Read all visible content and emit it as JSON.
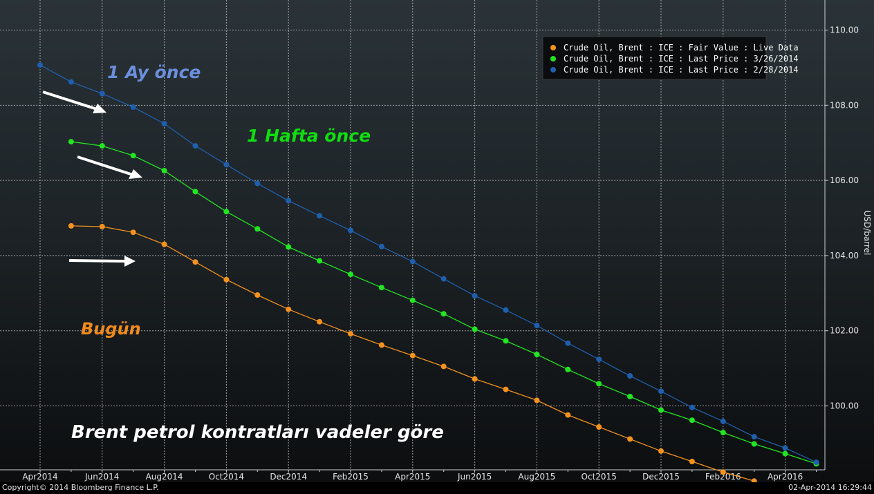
{
  "footer": {
    "copyright": "Copyright© 2014 Bloomberg Finance L.P.",
    "timestamp": "02-Apr-2014 16:29:44"
  },
  "annotations": {
    "month_ago": "1 Ay önce",
    "week_ago": "1 Hafta önce",
    "today": "Bugün",
    "caption": "Brent petrol kontratları vadeler göre"
  },
  "colors": {
    "today": "#f5921e",
    "week_ago": "#22e622",
    "month_ago": "#1f5fae",
    "month_ago_text": "#6b8fdc",
    "week_ago_text": "#10dd10",
    "today_text": "#f08a1c",
    "grid": "#d0d0d0",
    "axis": "#cfcfcf"
  },
  "chart_data": {
    "type": "line",
    "ylabel": "USD/barrel",
    "ylim": [
      98.3,
      110.8
    ],
    "yticks": [
      "100.00",
      "102.00",
      "104.00",
      "106.00",
      "108.00",
      "110.00"
    ],
    "ytick_values": [
      100,
      102,
      104,
      106,
      108,
      110
    ],
    "xticks": [
      "Apr2014",
      "Jun2014",
      "Aug2014",
      "Oct2014",
      "Dec2014",
      "Feb2015",
      "Apr2015",
      "Jun2015",
      "Aug2015",
      "Oct2015",
      "Dec2015",
      "Feb2016",
      "Apr2016"
    ],
    "grid": true,
    "legend_position": "top-right",
    "series": [
      {
        "name": "Crude Oil, Brent : ICE : Fair Value : Live Data",
        "key": "today",
        "start_month": 1,
        "values": [
          104.79,
          104.77,
          104.62,
          104.3,
          103.83,
          103.36,
          102.95,
          102.57,
          102.24,
          101.92,
          101.62,
          101.34,
          101.05,
          100.72,
          100.44,
          100.15,
          99.76,
          99.44,
          99.12,
          98.8,
          98.52,
          98.24,
          98.0
        ]
      },
      {
        "name": "Crude Oil, Brent : ICE : Last Price : 3/26/2014",
        "key": "week_ago",
        "start_month": 1,
        "values": [
          107.03,
          106.92,
          106.66,
          106.26,
          105.7,
          105.17,
          104.71,
          104.23,
          103.86,
          103.5,
          103.15,
          102.81,
          102.45,
          102.04,
          101.73,
          101.37,
          100.97,
          100.59,
          100.25,
          99.89,
          99.62,
          99.29,
          98.99,
          98.73,
          98.46
        ]
      },
      {
        "name": "Crude Oil, Brent : ICE : Last Price : 2/28/2014",
        "key": "month_ago",
        "start_month": 0,
        "values": [
          109.07,
          108.62,
          108.31,
          107.95,
          107.51,
          106.92,
          106.42,
          105.92,
          105.46,
          105.06,
          104.67,
          104.24,
          103.84,
          103.38,
          102.93,
          102.55,
          102.14,
          101.67,
          101.24,
          100.8,
          100.39,
          99.96,
          99.59,
          99.18,
          98.88,
          98.5
        ]
      }
    ]
  }
}
